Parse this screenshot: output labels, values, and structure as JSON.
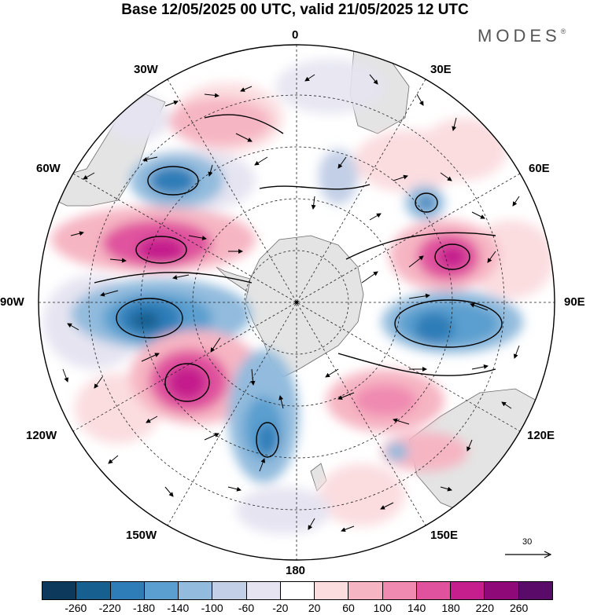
{
  "title": "Base 12/05/2025 00 UTC, valid 21/05/2025 12 UTC",
  "brand": {
    "name": "MODES",
    "mark": "®"
  },
  "meridian_labels": {
    "m0": "0",
    "m30e": "30E",
    "m60e": "60E",
    "m90e": "90E",
    "m120e": "120E",
    "m150e": "150E",
    "m180": "180",
    "m150w": "150W",
    "m120w": "120W",
    "m90w": "90W",
    "m60w": "60W",
    "m30w": "30W"
  },
  "reference_vector": {
    "value": "30",
    "icon": "arrow-right-icon"
  },
  "colorbar": {
    "colors": [
      "#0d3a5c",
      "#175f8f",
      "#2e7db8",
      "#5a9fcf",
      "#92bbdd",
      "#c2cfe6",
      "#e6e4f1",
      "#ffffff",
      "#fbdde0",
      "#f6b5c3",
      "#f08ab1",
      "#e0529e",
      "#c41f8d",
      "#8f0a78",
      "#5a0a68"
    ],
    "tick_labels": [
      "-260",
      "-220",
      "-180",
      "-140",
      "-100",
      "-60",
      "-20",
      "20",
      "60",
      "100",
      "140",
      "180",
      "220",
      "260"
    ]
  }
}
